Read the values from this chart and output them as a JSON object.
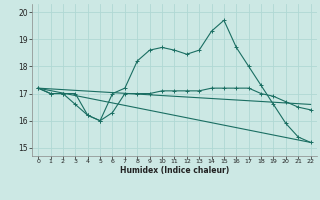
{
  "xlabel": "Humidex (Indice chaleur)",
  "xlim": [
    -0.5,
    22.5
  ],
  "ylim": [
    14.7,
    20.3
  ],
  "yticks": [
    15,
    16,
    17,
    18,
    19,
    20
  ],
  "xticks": [
    0,
    1,
    2,
    3,
    4,
    5,
    6,
    7,
    8,
    9,
    10,
    11,
    12,
    13,
    14,
    15,
    16,
    17,
    18,
    19,
    20,
    21,
    22
  ],
  "background_color": "#cce8e4",
  "grid_color": "#b0d8d4",
  "line_color": "#1a6e62",
  "series": [
    {
      "x": [
        0,
        1,
        2,
        3,
        4,
        5,
        6,
        7,
        8,
        9,
        10,
        11,
        12,
        13,
        14,
        15,
        16,
        17,
        18,
        19,
        20,
        21,
        22
      ],
      "y": [
        17.2,
        17.0,
        17.0,
        17.0,
        16.2,
        16.0,
        17.0,
        17.2,
        18.2,
        18.6,
        18.7,
        18.6,
        18.45,
        18.6,
        19.3,
        19.7,
        18.7,
        18.0,
        17.3,
        16.6,
        15.9,
        15.4,
        15.2
      ],
      "has_markers": true
    },
    {
      "x": [
        0,
        1,
        2,
        3,
        4,
        5,
        6,
        7,
        8,
        9,
        10,
        11,
        12,
        13,
        14,
        15,
        16,
        17,
        18,
        19,
        20,
        21,
        22
      ],
      "y": [
        17.2,
        17.0,
        17.0,
        16.6,
        16.2,
        16.0,
        16.3,
        17.0,
        17.0,
        17.0,
        17.1,
        17.1,
        17.1,
        17.1,
        17.2,
        17.2,
        17.2,
        17.2,
        17.0,
        16.9,
        16.7,
        16.5,
        16.4
      ],
      "has_markers": true
    },
    {
      "x": [
        0,
        22
      ],
      "y": [
        17.2,
        16.6
      ],
      "has_markers": false
    },
    {
      "x": [
        0,
        22
      ],
      "y": [
        17.2,
        15.2
      ],
      "has_markers": false
    }
  ]
}
